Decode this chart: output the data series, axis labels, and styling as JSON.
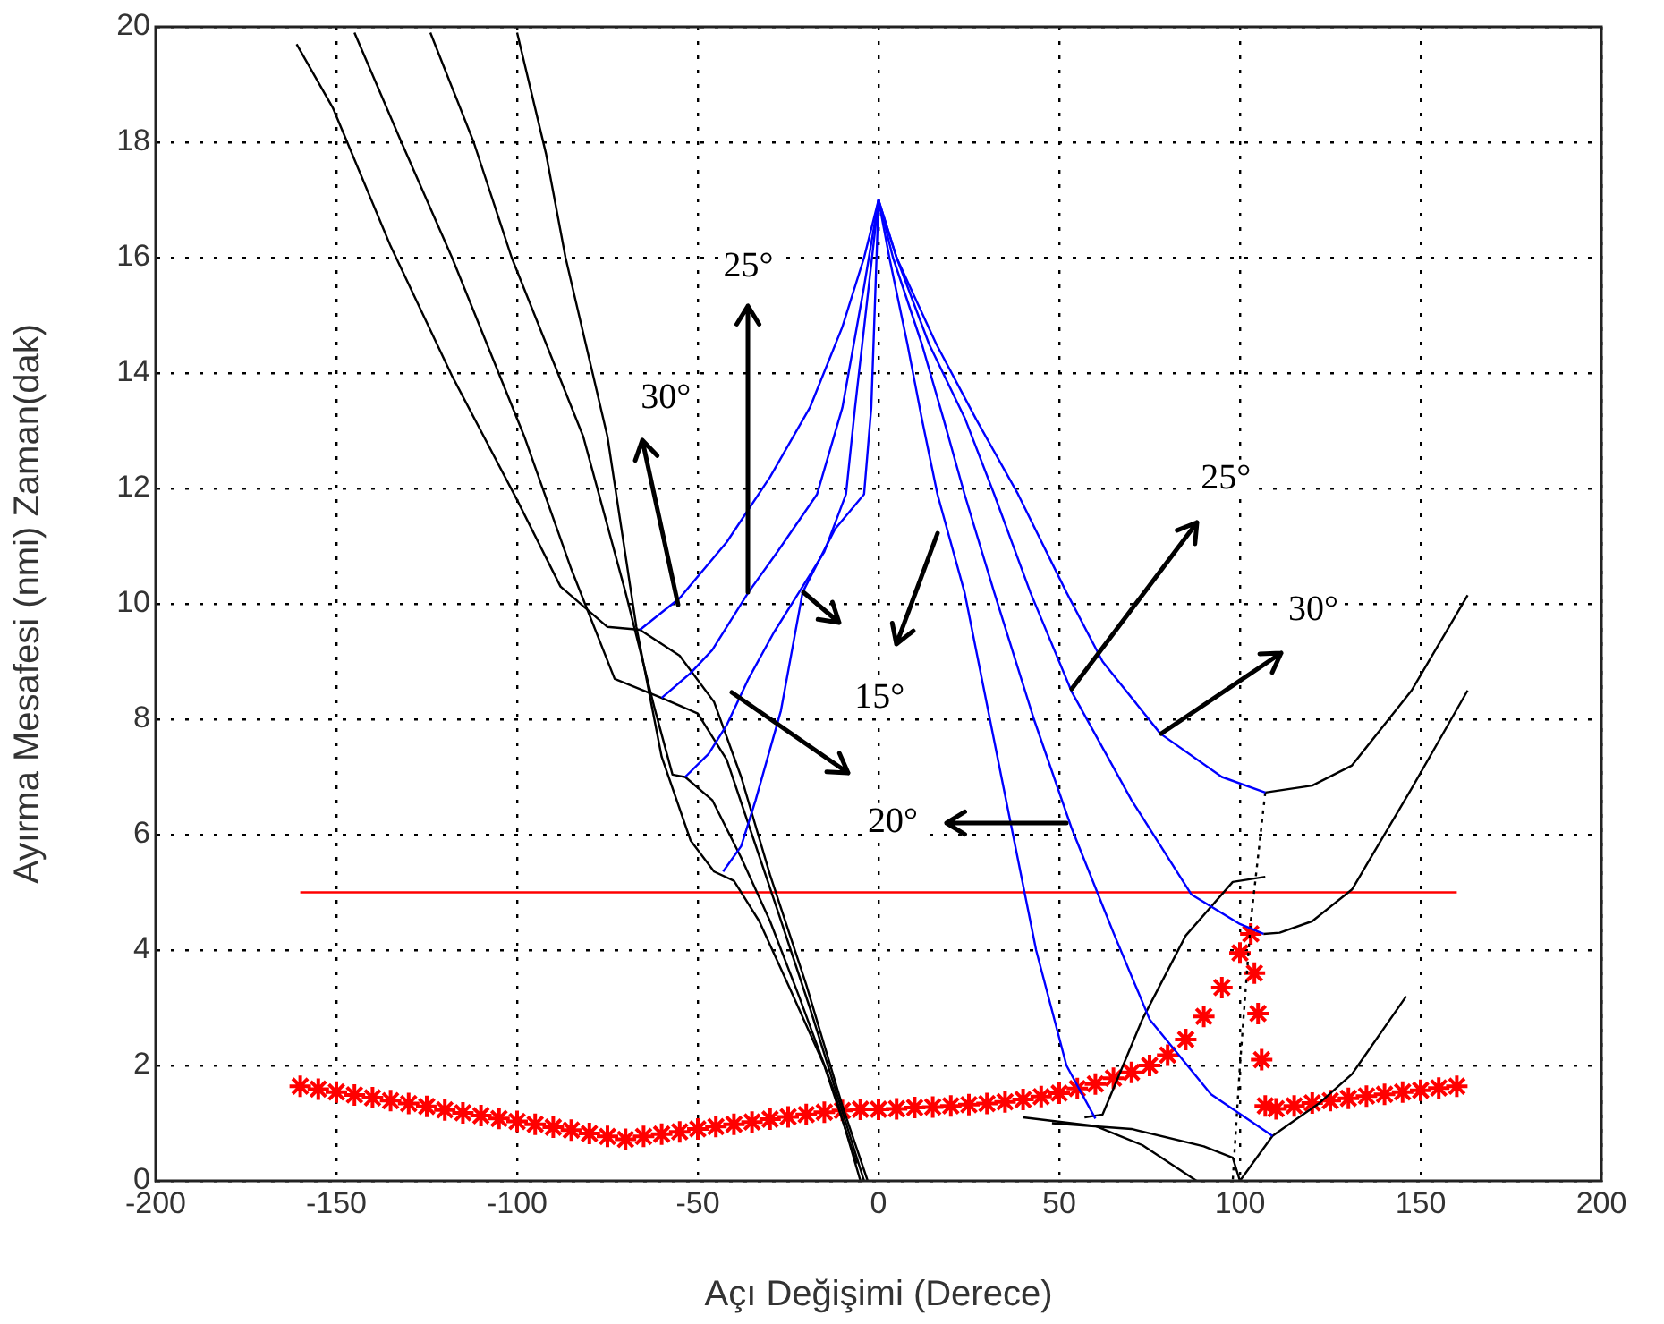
{
  "chart_data": {
    "type": "line",
    "xlabel": "Açı Değişimi (Derece)",
    "ylabel": "Ayırma Mesafesi (nmi) Zaman(dak)",
    "xlim": [
      -200,
      200
    ],
    "xticks": [
      -200,
      -150,
      -100,
      -50,
      0,
      50,
      100,
      150,
      200
    ],
    "ylim": [
      0,
      20
    ],
    "yticks": [
      0,
      2,
      4,
      6,
      8,
      10,
      12,
      14,
      16,
      18,
      20
    ],
    "grid": true,
    "marker": "none",
    "line_style": "solid",
    "series": [
      {
        "color": "#0000ff",
        "x": [
          -66,
          -55,
          -42,
          -30,
          -19,
          -10,
          -4,
          0
        ],
        "values": [
          9.55,
          10.1,
          11.07,
          12.2,
          13.4,
          14.8,
          16.0,
          17
        ]
      },
      {
        "color": "#0000ff",
        "x": [
          -60,
          -52,
          -46,
          -36,
          -28,
          -17,
          -10,
          -4,
          0
        ],
        "values": [
          8.37,
          8.8,
          9.2,
          10.2,
          10.9,
          11.9,
          13.4,
          15.5,
          17
        ]
      },
      {
        "color": "#0000ff",
        "x": [
          -53.5,
          -47,
          -42,
          -36,
          -29,
          -22,
          -15,
          -9,
          -6.5,
          0
        ],
        "values": [
          7.0,
          7.4,
          7.9,
          8.7,
          9.5,
          10.2,
          10.9,
          11.9,
          13.4,
          17
        ]
      },
      {
        "color": "#0000ff",
        "x": [
          -43,
          -38,
          -34,
          -27,
          -21,
          -12,
          -4,
          -2,
          0
        ],
        "values": [
          5.36,
          5.8,
          6.6,
          8.15,
          10.2,
          11.3,
          11.9,
          13.4,
          17
        ]
      },
      {
        "color": "#0000ff",
        "x": [
          0,
          5,
          16,
          27,
          38.6,
          52,
          62,
          78,
          95,
          107
        ],
        "values": [
          17,
          16,
          14.5,
          13.2,
          11.9,
          10.2,
          9.0,
          7.75,
          7.0,
          6.73
        ]
      },
      {
        "color": "#0000ff",
        "x": [
          0,
          5,
          14,
          24,
          32,
          42,
          53.5,
          70,
          86.6,
          100,
          106.5
        ],
        "values": [
          17,
          16,
          14.5,
          13.2,
          11.9,
          10.2,
          8.47,
          6.6,
          4.96,
          4.45,
          4.28
        ]
      },
      {
        "color": "#0000ff",
        "x": [
          0,
          4,
          12,
          18,
          23.8,
          32,
          43,
          53.5,
          65,
          75,
          92,
          109
        ],
        "values": [
          17,
          16,
          14.5,
          13.2,
          11.9,
          10.2,
          8.0,
          6.1,
          4.3,
          2.8,
          1.5,
          0.78
        ]
      },
      {
        "color": "#0000ff",
        "x": [
          0,
          3,
          8,
          12,
          16.3,
          23.8,
          34,
          43.6,
          52,
          60
        ],
        "values": [
          17,
          16,
          14.5,
          13.2,
          11.9,
          10.2,
          7.0,
          4.0,
          2.0,
          1.08
        ]
      },
      {
        "color": "#000000",
        "x": [
          -161,
          -151,
          -135,
          -118,
          -100,
          -88,
          -75,
          -66,
          -55,
          -45.5,
          -38,
          -30,
          -20,
          -10,
          -3
        ],
        "values": [
          19.7,
          18.6,
          16.2,
          13.95,
          11.8,
          10.3,
          9.6,
          9.55,
          9.1,
          8.3,
          7.0,
          5.3,
          3.4,
          1.3,
          0
        ]
      },
      {
        "color": "#000000",
        "x": [
          -145,
          -132,
          -118,
          -98,
          -85,
          -73,
          -60,
          -50,
          -42,
          -35,
          -28,
          -19,
          -10,
          -4
        ],
        "values": [
          19.9,
          18.0,
          16.0,
          12.9,
          10.6,
          8.7,
          8.37,
          8.1,
          7.3,
          6.0,
          4.7,
          3.0,
          1.2,
          0
        ]
      },
      {
        "color": "#000000",
        "x": [
          -124,
          -112,
          -101.5,
          -81.7,
          -70,
          -62,
          -57,
          -53.5,
          -46,
          -38,
          -30,
          -22,
          -12,
          -5
        ],
        "values": [
          19.9,
          18.0,
          16.0,
          12.9,
          10.2,
          8.2,
          7.04,
          7.0,
          6.6,
          5.6,
          4.5,
          3.2,
          1.5,
          0
        ]
      },
      {
        "color": "#000000",
        "x": [
          -100,
          -92,
          -86.6,
          -75,
          -67,
          -60,
          -52,
          -45.5,
          -40,
          -33,
          -25,
          -15,
          -6
        ],
        "values": [
          19.9,
          17.8,
          16.0,
          12.9,
          9.6,
          7.35,
          5.9,
          5.36,
          5.2,
          4.5,
          3.4,
          2.0,
          0.3
        ]
      },
      {
        "color": "#000000",
        "x": [
          107,
          120,
          131,
          147.5,
          163
        ],
        "values": [
          6.73,
          6.85,
          7.2,
          8.5,
          10.15
        ]
      },
      {
        "color": "#000000",
        "x": [
          106.5,
          111,
          120,
          131,
          147.5,
          163
        ],
        "values": [
          4.28,
          4.3,
          4.5,
          5.05,
          6.8,
          8.5
        ]
      },
      {
        "color": "#000000",
        "x": [
          57,
          62,
          73,
          85,
          98,
          107
        ],
        "values": [
          1.1,
          1.15,
          2.8,
          4.25,
          5.18,
          5.27
        ]
      },
      {
        "color": "#000000",
        "x": [
          40,
          60,
          73,
          88
        ],
        "values": [
          1.1,
          0.95,
          0.62,
          0
        ]
      },
      {
        "color": "#000000",
        "x": [
          48,
          70,
          90,
          98,
          100,
          109,
          114,
          122,
          131,
          146
        ],
        "values": [
          1.0,
          0.9,
          0.6,
          0.4,
          0,
          0.78,
          1.0,
          1.35,
          1.85,
          3.2
        ]
      },
      {
        "color": "#000000",
        "line_style": "dotted",
        "x": [
          107,
          103,
          100,
          98
        ],
        "values": [
          6.73,
          4.5,
          2,
          0
        ]
      },
      {
        "color": "#ff0000",
        "x": [
          -160,
          160
        ],
        "values": [
          5,
          5
        ]
      },
      {
        "type": "scatter",
        "color": "#ff0000",
        "marker": "cross",
        "x": [
          -160,
          -155,
          -150,
          -145,
          -140,
          -135,
          -130,
          -125,
          -120,
          -115,
          -110,
          -105,
          -100,
          -95,
          -90,
          -85,
          -80,
          -75,
          -70,
          -65,
          -60,
          -55,
          -50,
          -45,
          -40,
          -35,
          -30,
          -25,
          -20,
          -15,
          -10,
          -5,
          0,
          5,
          10,
          15,
          20,
          25,
          30,
          35,
          40,
          45,
          50,
          55,
          60,
          65,
          70,
          75,
          80,
          85,
          90,
          95,
          100,
          103,
          104,
          105,
          106,
          107,
          110,
          115,
          120,
          125,
          130,
          135,
          140,
          145,
          150,
          155,
          160
        ],
        "values": [
          1.64,
          1.59,
          1.54,
          1.49,
          1.44,
          1.39,
          1.34,
          1.29,
          1.23,
          1.18,
          1.13,
          1.08,
          1.03,
          0.98,
          0.93,
          0.88,
          0.82,
          0.77,
          0.72,
          0.77,
          0.81,
          0.85,
          0.9,
          0.94,
          0.98,
          1.02,
          1.07,
          1.11,
          1.15,
          1.19,
          1.22,
          1.24,
          1.24,
          1.25,
          1.27,
          1.28,
          1.3,
          1.32,
          1.34,
          1.37,
          1.41,
          1.46,
          1.52,
          1.6,
          1.68,
          1.78,
          1.88,
          2.0,
          2.18,
          2.45,
          2.85,
          3.35,
          3.95,
          4.28,
          3.6,
          2.9,
          2.1,
          1.3,
          1.25,
          1.3,
          1.35,
          1.39,
          1.43,
          1.47,
          1.5,
          1.54,
          1.57,
          1.61,
          1.64
        ]
      }
    ],
    "annotations": [
      {
        "text": "25°",
        "x": -36,
        "y": 10.2
      },
      {
        "text": "30°",
        "x": -55.4,
        "y": 10.0
      },
      {
        "text": "15°",
        "x": -21,
        "y": 10.2
      },
      {
        "text": "20°",
        "x": -40.6,
        "y": 8.47
      },
      {
        "text": "25°",
        "x": 53.5,
        "y": 8.53
      },
      {
        "text": "30°",
        "x": 78.2,
        "y": 7.75
      }
    ]
  }
}
